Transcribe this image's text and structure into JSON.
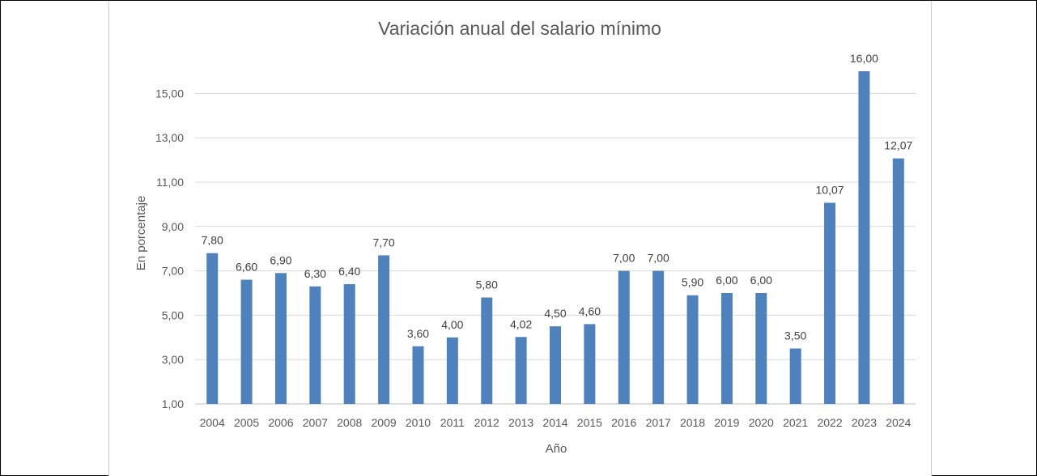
{
  "chart_data": {
    "type": "bar",
    "title": "Variación anual del salario mínimo",
    "xlabel": "Año",
    "ylabel": "En porcentaje",
    "ylim": [
      1,
      16
    ],
    "yticks": [
      "1,00",
      "3,00",
      "5,00",
      "7,00",
      "9,00",
      "11,00",
      "13,00",
      "15,00"
    ],
    "ytick_values": [
      1,
      3,
      5,
      7,
      9,
      11,
      13,
      15
    ],
    "grid": true,
    "legend": "none",
    "color": "#4f81bd",
    "categories": [
      "2004",
      "2005",
      "2006",
      "2007",
      "2008",
      "2009",
      "2010",
      "2011",
      "2012",
      "2013",
      "2014",
      "2015",
      "2016",
      "2017",
      "2018",
      "2019",
      "2020",
      "2021",
      "2022",
      "2023",
      "2024"
    ],
    "values": [
      7.8,
      6.6,
      6.9,
      6.3,
      6.4,
      7.7,
      3.6,
      4.0,
      5.8,
      4.02,
      4.5,
      4.6,
      7.0,
      7.0,
      5.9,
      6.0,
      6.0,
      3.5,
      10.07,
      16.0,
      12.07
    ],
    "data_labels": [
      "7,80",
      "6,60",
      "6,90",
      "6,30",
      "6,40",
      "7,70",
      "3,60",
      "4,00",
      "5,80",
      "4,02",
      "4,50",
      "4,60",
      "7,00",
      "7,00",
      "5,90",
      "6,00",
      "6,00",
      "3,50",
      "10,07",
      "16,00",
      "12,07"
    ]
  }
}
